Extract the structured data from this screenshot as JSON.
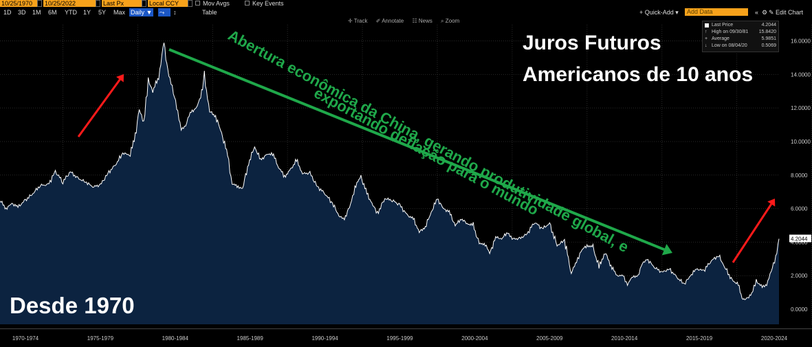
{
  "toolbar": {
    "start_date": "10/25/1970",
    "end_date": "10/25/2022",
    "price_field": "Last Px",
    "currency": "Local CCY",
    "mov_avgs": "Mov Avgs",
    "key_events": "Key Events",
    "periods": [
      "1D",
      "3D",
      "1M",
      "6M",
      "YTD",
      "1Y",
      "5Y",
      "Max"
    ],
    "frequency": "Daily ▼",
    "table_label": "Table",
    "quick_add": "+ Quick-Add ▾",
    "add_data_placeholder": "Add Data",
    "edit_chart": "✎ Edit Chart",
    "collapse_icon": "«",
    "settings_icon": "⚙",
    "track": "✛ Track",
    "annotate": "✐ Annotate",
    "news": "☷ News",
    "zoom": "⌕ Zoom"
  },
  "legend": {
    "last_price_label": "Last Price",
    "last_price_value": "4.2044",
    "high_label": "High on 09/30/81",
    "high_value": "15.8420",
    "average_label": "Average",
    "average_value": "5.9851",
    "low_label": "Low on 08/04/20",
    "low_value": "0.5069"
  },
  "annotations": {
    "title_line1": "Juros Futuros",
    "title_line2": "Americanos de 10 anos",
    "since": "Desde 1970",
    "diagonal_line1": "Abertura econômica da China, gerando produtividade global, e",
    "diagonal_line2": "exportando deflação para o mundo"
  },
  "colors": {
    "background": "#000000",
    "area_fill": "#0c2340",
    "line": "#ffffff",
    "green_arrow": "#1fa84a",
    "red_arrow": "#ff1a1a",
    "toolbar_orange": "#f7a21b",
    "selected_blue": "#1b57c6"
  },
  "chart_data": {
    "type": "area",
    "title": "",
    "xlabel": "",
    "ylabel": "",
    "ylim": [
      0,
      16.6
    ],
    "grid": true,
    "last_value_label": "4.2044",
    "y_ticks": [
      "0.0000",
      "2.0000",
      "4.0000",
      "6.0000",
      "8.0000",
      "10.0000",
      "12.0000",
      "14.0000",
      "16.0000"
    ],
    "x_ticks": [
      "1970-1974",
      "1975-1979",
      "1980-1984",
      "1985-1989",
      "1990-1994",
      "1995-1999",
      "2000-2004",
      "2005-2009",
      "2010-2014",
      "2015-2019",
      "2020-2024"
    ],
    "series": [
      {
        "x": [
          1970.8,
          1971.2,
          1971.6,
          1972.0,
          1972.5,
          1973.0,
          1973.5,
          1974.0,
          1974.5,
          1975.0,
          1975.5,
          1976.0,
          1976.5,
          1977.0,
          1977.5,
          1978.0,
          1978.5,
          1979.0,
          1979.5,
          1979.9,
          1980.1,
          1980.4,
          1980.7,
          1981.0,
          1981.4,
          1981.75,
          1982.0,
          1982.3,
          1982.6,
          1982.9,
          1983.2,
          1983.5,
          1983.9,
          1984.2,
          1984.45,
          1984.8,
          1985.2,
          1985.6,
          1986.0,
          1986.3,
          1986.7,
          1987.0,
          1987.4,
          1987.8,
          1988.2,
          1988.6,
          1989.0,
          1989.4,
          1989.8,
          1990.2,
          1990.6,
          1991.0,
          1991.5,
          1992.0,
          1992.5,
          1993.0,
          1993.5,
          1993.8,
          1994.2,
          1994.5,
          1994.9,
          1995.3,
          1995.7,
          1996.0,
          1996.5,
          1997.0,
          1997.5,
          1998.0,
          1998.4,
          1998.8,
          1999.2,
          1999.6,
          2000.0,
          2000.4,
          2000.8,
          2001.2,
          2001.6,
          2002.0,
          2002.4,
          2002.8,
          2003.2,
          2003.5,
          2003.9,
          2004.3,
          2004.7,
          2005.0,
          2005.5,
          2006.0,
          2006.5,
          2007.0,
          2007.5,
          2008.0,
          2008.5,
          2008.95,
          2009.3,
          2009.6,
          2010.0,
          2010.4,
          2010.8,
          2011.2,
          2011.6,
          2012.0,
          2012.4,
          2012.7,
          2013.0,
          2013.4,
          2013.7,
          2014.0,
          2014.5,
          2015.0,
          2015.5,
          2016.0,
          2016.5,
          2016.9,
          2017.3,
          2017.8,
          2018.3,
          2018.8,
          2019.2,
          2019.7,
          2020.1,
          2020.35,
          2020.6,
          2021.0,
          2021.3,
          2021.7,
          2022.0,
          2022.3,
          2022.6,
          2022.82
        ],
        "values": [
          6.5,
          6.0,
          6.3,
          6.1,
          6.5,
          6.9,
          7.4,
          7.4,
          8.2,
          7.6,
          8.2,
          7.8,
          7.6,
          7.3,
          7.4,
          8.1,
          8.6,
          9.3,
          9.2,
          10.7,
          12.0,
          11.0,
          13.7,
          13.0,
          13.9,
          15.84,
          14.2,
          13.3,
          12.0,
          10.7,
          11.0,
          11.7,
          12.0,
          12.6,
          13.9,
          11.8,
          11.5,
          10.5,
          9.2,
          7.5,
          7.3,
          7.2,
          8.7,
          9.7,
          8.9,
          9.2,
          9.3,
          8.5,
          7.9,
          8.3,
          8.9,
          8.1,
          8.1,
          7.3,
          6.9,
          6.3,
          5.5,
          5.4,
          6.2,
          7.3,
          7.9,
          6.9,
          6.2,
          5.7,
          6.6,
          6.5,
          6.2,
          5.6,
          5.4,
          4.6,
          4.9,
          5.8,
          6.6,
          6.0,
          5.8,
          5.0,
          5.4,
          5.1,
          5.0,
          3.9,
          3.9,
          3.3,
          4.3,
          4.2,
          4.6,
          4.2,
          4.2,
          4.5,
          5.2,
          4.8,
          5.1,
          3.8,
          4.1,
          2.2,
          2.8,
          3.5,
          3.8,
          3.7,
          2.5,
          3.4,
          2.6,
          2.0,
          2.0,
          1.5,
          1.9,
          2.0,
          2.7,
          3.0,
          2.5,
          2.2,
          2.4,
          1.9,
          1.5,
          2.0,
          2.4,
          2.3,
          2.9,
          3.2,
          2.5,
          1.7,
          1.5,
          0.6,
          0.6,
          0.9,
          1.7,
          1.3,
          1.5,
          2.3,
          3.0,
          4.2
        ]
      }
    ]
  }
}
